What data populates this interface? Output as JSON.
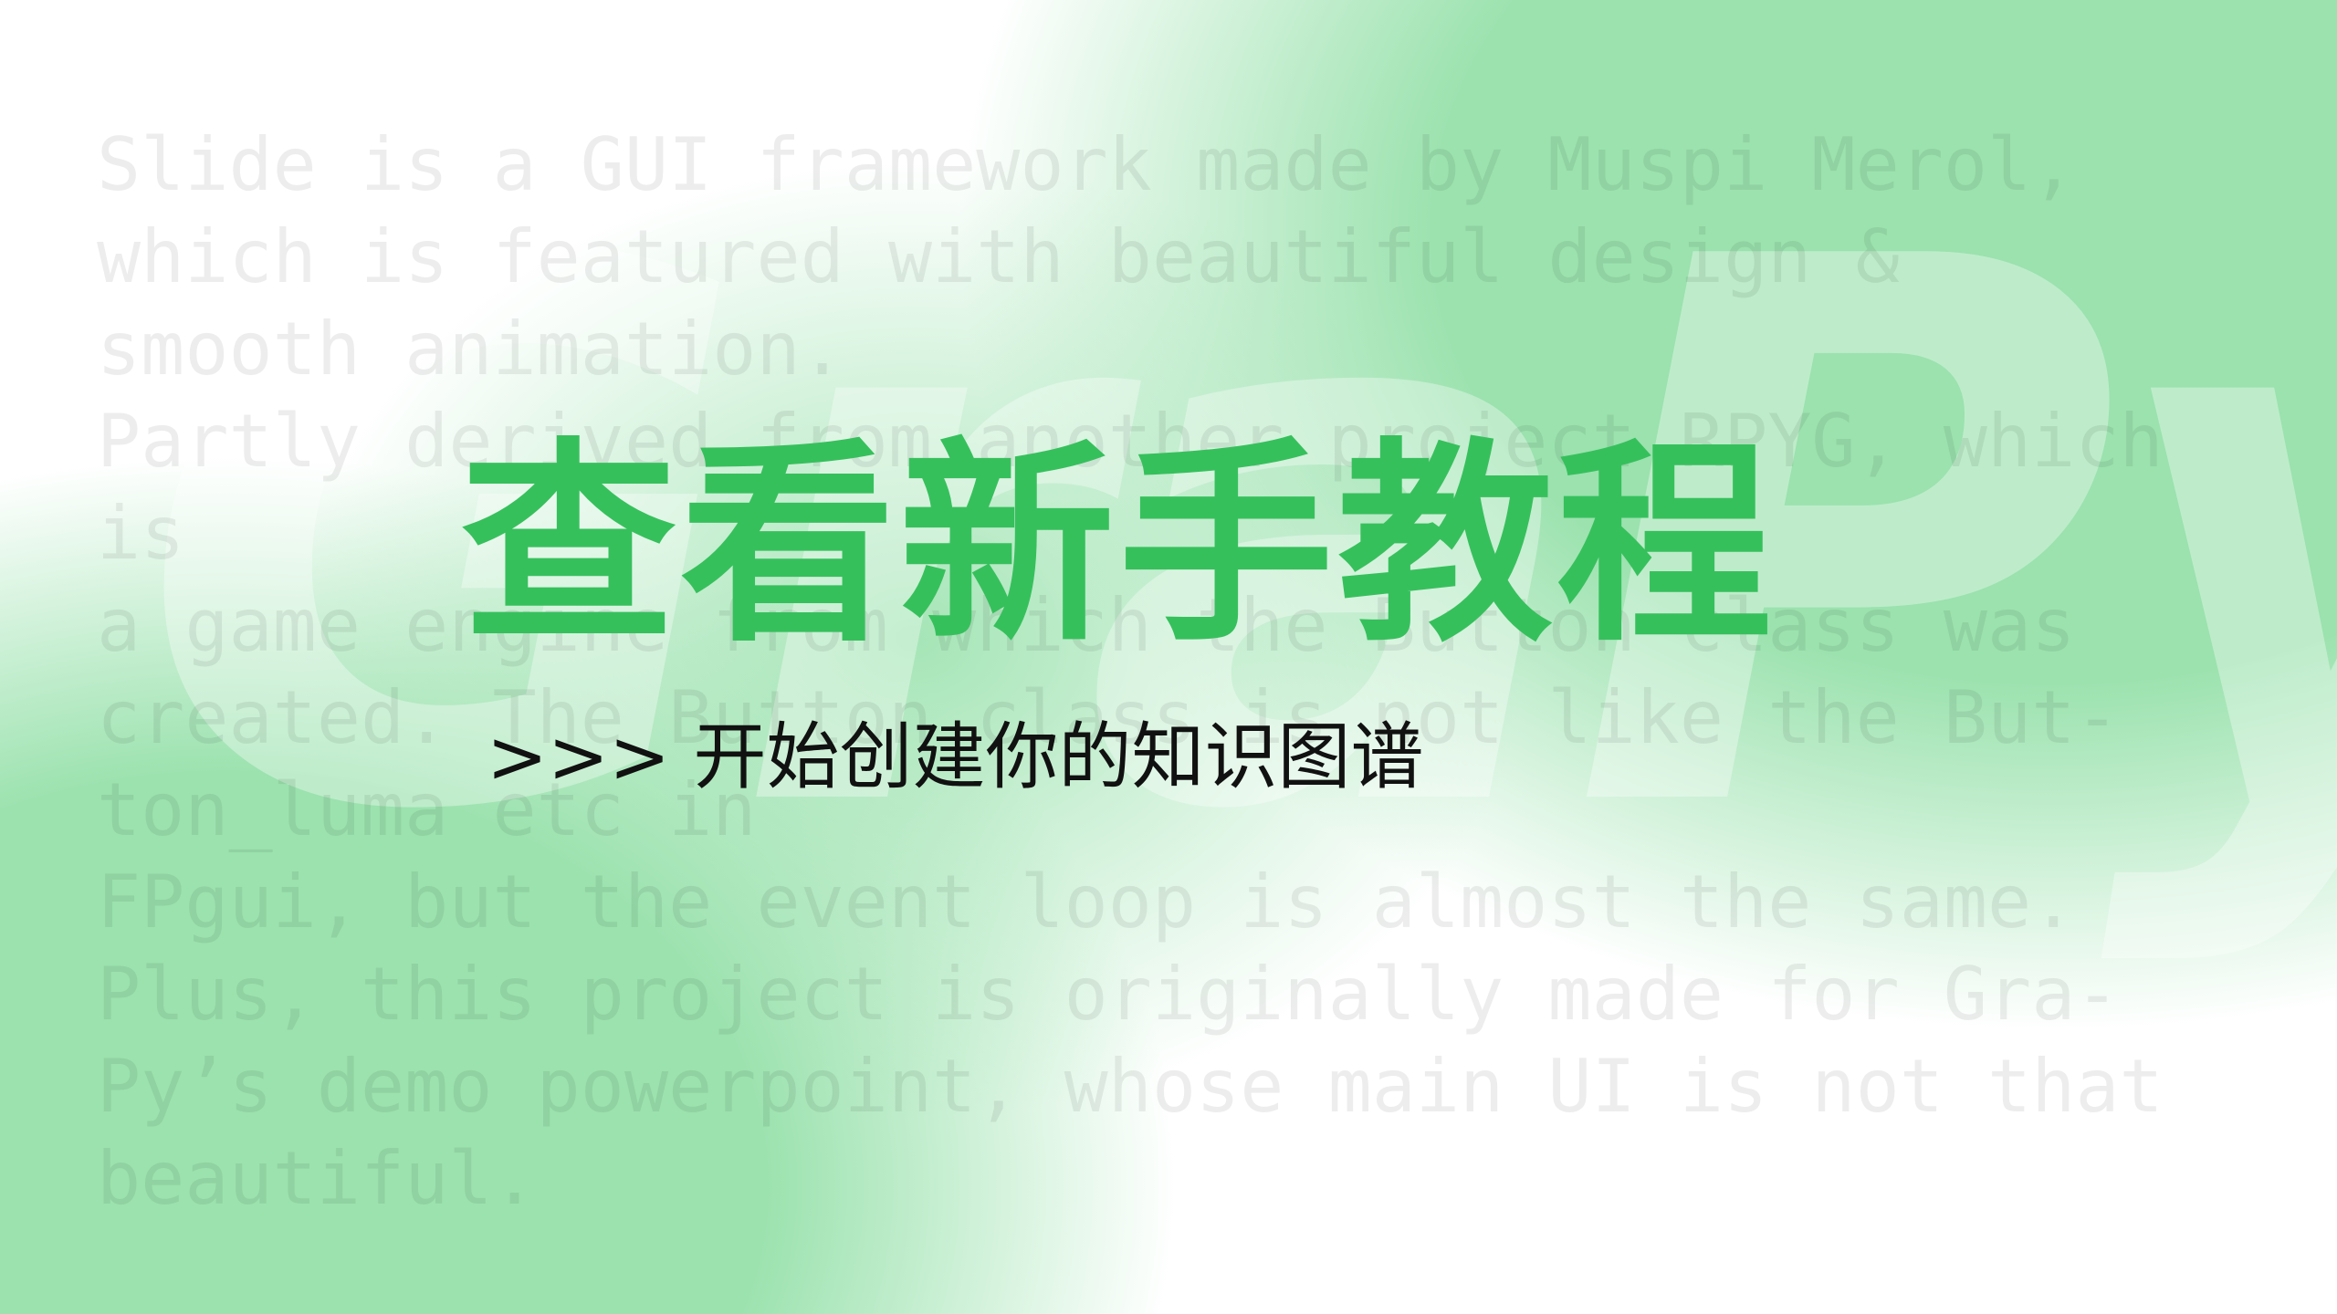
{
  "watermark": "GraPy",
  "background_text": {
    "lines": [
      "Slide is a GUI framework made by Muspi Merol,",
      "which is featured with beautiful design &",
      "smooth animation.",
      "Partly derived from another project RPYG, which",
      "is",
      "a game engine from which the Button class was",
      "created. The Button class is not like the But-",
      "ton_luma etc in",
      "FPgui, but the event loop is almost the same.",
      "Plus, this project is originally made for Gra-",
      "Py’s demo powerpoint, whose main UI is not that",
      "beautiful."
    ]
  },
  "title": "查看新手教程",
  "subtitle": ">>> 开始创建你的知识图谱"
}
